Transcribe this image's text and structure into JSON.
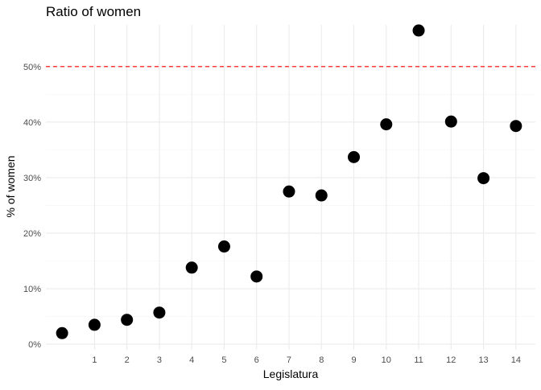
{
  "chart_data": {
    "type": "scatter",
    "title": "Ratio of women",
    "xlabel": "Legislatura",
    "ylabel": "% of women",
    "x_ticks": [
      1,
      2,
      3,
      4,
      5,
      6,
      7,
      8,
      9,
      10,
      11,
      12,
      13,
      14
    ],
    "y_ticks": [
      0,
      10,
      20,
      30,
      40,
      50
    ],
    "y_tick_suffix": "%",
    "xlim": [
      -0.5,
      14.6
    ],
    "ylim": [
      -1.0,
      57.5
    ],
    "grid": true,
    "points": [
      {
        "x": 0,
        "y": 2.0
      },
      {
        "x": 1,
        "y": 3.5
      },
      {
        "x": 2,
        "y": 4.4
      },
      {
        "x": 3,
        "y": 5.7
      },
      {
        "x": 4,
        "y": 13.8
      },
      {
        "x": 5,
        "y": 17.6
      },
      {
        "x": 6,
        "y": 12.2
      },
      {
        "x": 7,
        "y": 27.5
      },
      {
        "x": 8,
        "y": 26.8
      },
      {
        "x": 9,
        "y": 33.7
      },
      {
        "x": 10,
        "y": 39.6
      },
      {
        "x": 11,
        "y": 56.5
      },
      {
        "x": 12,
        "y": 40.1
      },
      {
        "x": 13,
        "y": 29.9
      },
      {
        "x": 14,
        "y": 39.3
      }
    ],
    "reference_line": {
      "y": 50,
      "color": "#ff0000",
      "style": "dashed"
    },
    "point_color": "#000000"
  }
}
